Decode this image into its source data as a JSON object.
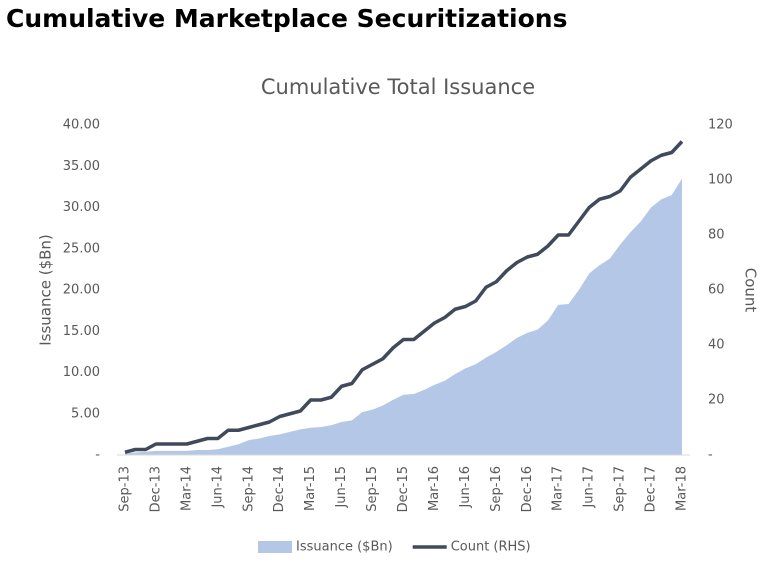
{
  "title": "Cumulative Marketplace Securitizations",
  "chart_data": {
    "type": "area-line",
    "title": "Cumulative Total Issuance",
    "ylabel": "Issuance ($Bn)",
    "y2label": "Count",
    "categories": [
      "Sep-13",
      null,
      null,
      "Dec-13",
      null,
      null,
      "Mar-14",
      null,
      null,
      "Jun-14",
      null,
      null,
      "Sep-14",
      null,
      null,
      "Dec-14",
      null,
      null,
      "Mar-15",
      null,
      null,
      "Jun-15",
      null,
      null,
      "Sep-15",
      null,
      null,
      "Dec-15",
      null,
      null,
      "Mar-16",
      null,
      null,
      "Jun-16",
      null,
      null,
      "Sep-16",
      null,
      null,
      "Dec-16",
      null,
      null,
      "Mar-17",
      null,
      null,
      "Jun-17",
      null,
      null,
      "Sep-17",
      null,
      null,
      "Dec-17",
      null,
      null,
      "Mar-18"
    ],
    "series": [
      {
        "name": "Issuance ($Bn)",
        "color": "#b4c7e7",
        "kind": "area",
        "values": [
          0.2,
          0.3,
          0.4,
          0.5,
          0.5,
          0.5,
          0.5,
          0.6,
          0.6,
          0.7,
          1.0,
          1.3,
          1.8,
          2.0,
          2.3,
          2.5,
          2.8,
          3.1,
          3.3,
          3.4,
          3.6,
          4.0,
          4.2,
          5.2,
          5.5,
          6.0,
          6.7,
          7.3,
          7.4,
          7.9,
          8.5,
          9.0,
          9.8,
          10.5,
          11.0,
          11.8,
          12.5,
          13.3,
          14.2,
          14.8,
          15.2,
          16.3,
          18.2,
          18.3,
          20.0,
          22.0,
          23.0,
          23.8,
          25.5,
          27.0,
          28.3,
          30.0,
          31.0,
          31.5,
          33.5
        ]
      },
      {
        "name": "Count (RHS)",
        "color": "#404a5a",
        "kind": "line",
        "axis": "y2",
        "values": [
          1,
          2,
          2,
          4,
          4,
          4,
          4,
          5,
          6,
          6,
          9,
          9,
          10,
          11,
          12,
          14,
          15,
          16,
          20,
          20,
          21,
          25,
          26,
          31,
          33,
          35,
          39,
          42,
          42,
          45,
          48,
          50,
          53,
          54,
          56,
          61,
          63,
          67,
          70,
          72,
          73,
          76,
          80,
          80,
          85,
          90,
          93,
          94,
          96,
          101,
          104,
          107,
          109,
          110,
          114
        ]
      }
    ],
    "ylim": [
      0,
      40
    ],
    "yticks": [
      {
        "value": 0,
        "label": "-"
      },
      {
        "value": 5,
        "label": "5.00"
      },
      {
        "value": 10,
        "label": "10.00"
      },
      {
        "value": 15,
        "label": "15.00"
      },
      {
        "value": 20,
        "label": "20.00"
      },
      {
        "value": 25,
        "label": "25.00"
      },
      {
        "value": 30,
        "label": "30.00"
      },
      {
        "value": 35,
        "label": "35.00"
      },
      {
        "value": 40,
        "label": "40.00"
      }
    ],
    "y2lim": [
      0,
      120
    ],
    "y2ticks": [
      {
        "value": 0,
        "label": "-"
      },
      20,
      40,
      60,
      80,
      100,
      120
    ],
    "legend": "bottom"
  }
}
